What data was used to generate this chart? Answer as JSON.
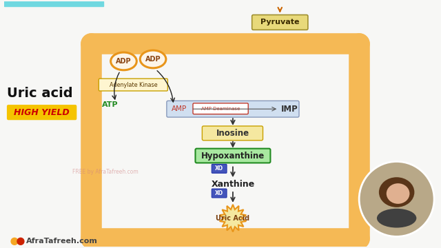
{
  "bg_color": "#f7f7f5",
  "title_top_bar_color": "#70d8e0",
  "tube_color": "#f5b955",
  "tube_inner_color": "#fde8b8",
  "pyruvate_box_color": "#e8d97a",
  "pyruvate_border": "#a09030",
  "pyruvate_text": "Pyruvate",
  "adp_fill": "#fdf5e8",
  "adp_border": "#e8951a",
  "adp_text_color": "#8B4513",
  "adenylate_box_color": "#fef5d0",
  "adenylate_border": "#c8a000",
  "adenylate_text": "Adenylate Kinase",
  "atp_color": "#228B22",
  "amp_box_color": "#d0dff0",
  "amp_box_border": "#8899bb",
  "amp_text_color": "#c0392b",
  "amp_deaminase_fill": "#ffffff",
  "amp_deaminase_border": "#c0392b",
  "amp_deaminase_text": "AMP Deaminase",
  "imp_text_color": "#333333",
  "arrow_color": "#333333",
  "inosine_box_color": "#f5e8a0",
  "inosine_border": "#c8a000",
  "hypoxanthine_box_color": "#a8e8a0",
  "hypoxanthine_border": "#228B22",
  "xo_box_color": "#4455bb",
  "xo_border": "#2233aa",
  "xo_text_color": "#ffffff",
  "xanthine_text_color": "#222222",
  "uric_acid_fill": "#f5e8a0",
  "uric_acid_border": "#e8951a",
  "uric_acid_text_color": "#7a4010",
  "left_title": "Uric acid",
  "left_title_color": "#111111",
  "high_yield_bg": "#f5c400",
  "high_yield_text": "HIGH YIELD",
  "high_yield_text_color": "#cc0000",
  "watermark": "FREE by AfraTafreeh.com",
  "watermark_color": "#d08080",
  "brand": "AfraTafreeh.com",
  "brand_dot1": "#f5a623",
  "brand_dot2": "#cc2200",
  "cam_fill": "#c8b090",
  "cam_head_fill": "#d4a57a",
  "cam_body_fill": "#c09060",
  "orange_arrow_color": "#cc6600"
}
